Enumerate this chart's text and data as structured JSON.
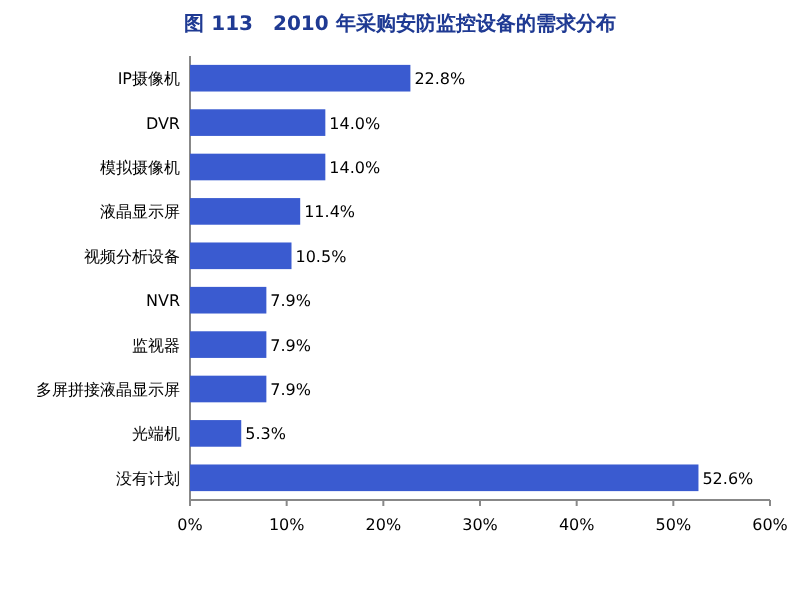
{
  "chart_data": {
    "type": "bar",
    "orientation": "horizontal",
    "title": "图 113　2010 年采购安防监控设备的需求分布",
    "categories": [
      "IP摄像机",
      "DVR",
      "模拟摄像机",
      "液晶显示屏",
      "视频分析设备",
      "NVR",
      "监视器",
      "多屏拼接液晶显示屏",
      "光端机",
      "没有计划"
    ],
    "values": [
      22.8,
      14.0,
      14.0,
      11.4,
      10.5,
      7.9,
      7.9,
      7.9,
      5.3,
      52.6
    ],
    "value_labels": [
      "22.8%",
      "14.0%",
      "14.0%",
      "11.4%",
      "10.5%",
      "7.9%",
      "7.9%",
      "7.9%",
      "5.3%",
      "52.6%"
    ],
    "color": "#3a5bd0",
    "xlim": [
      0,
      60
    ],
    "xticks": [
      {
        "value": 0,
        "label": "0%"
      },
      {
        "value": 10,
        "label": "10%"
      },
      {
        "value": 20,
        "label": "20%"
      },
      {
        "value": 30,
        "label": "30%"
      },
      {
        "value": 40,
        "label": "40%"
      },
      {
        "value": 50,
        "label": "50%"
      },
      {
        "value": 60,
        "label": "60%"
      }
    ]
  }
}
